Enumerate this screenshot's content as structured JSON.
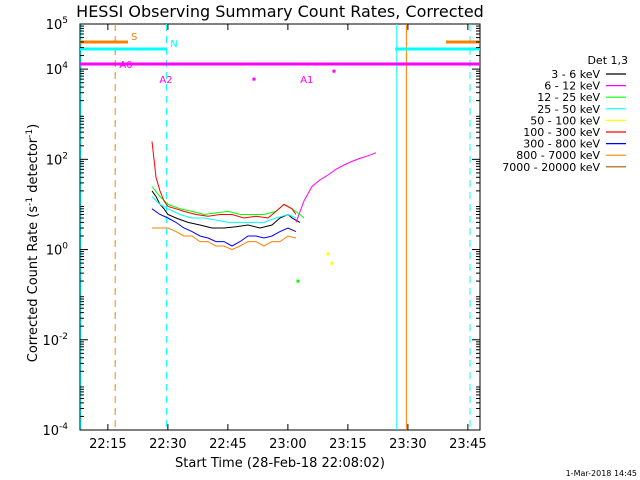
{
  "chart_data": {
    "type": "line",
    "title": "HESSI Observing Summary Count Rates, Corrected",
    "xlabel": "Start Time (28-Feb-18 22:08:02)",
    "ylabel": "Corrected Count Rate (s⁻¹ detector⁻¹)",
    "ylabel_main": "Corrected Count Rate (s",
    "ylabel_sup1": "-1",
    "ylabel_mid": " detector",
    "ylabel_sup2": "-1",
    "ylabel_end": ")",
    "x_unit": "minutes since 22:08:02",
    "xlim_time": [
      "22:08:02",
      "23:48:02"
    ],
    "xlim": [
      0,
      100
    ],
    "ylim": [
      0.0001,
      100000
    ],
    "y_scale": "log",
    "x_ticks": [
      {
        "t": 6.97,
        "label": "22:15"
      },
      {
        "t": 21.97,
        "label": "22:30"
      },
      {
        "t": 36.97,
        "label": "22:45"
      },
      {
        "t": 51.97,
        "label": "23:00"
      },
      {
        "t": 66.97,
        "label": "23:15"
      },
      {
        "t": 81.97,
        "label": "23:30"
      },
      {
        "t": 96.97,
        "label": "23:45"
      }
    ],
    "y_ticks": [
      {
        "exp": 5,
        "base": "10",
        "sup": "5"
      },
      {
        "exp": 4,
        "base": "10",
        "sup": "4"
      },
      {
        "exp": 2,
        "base": "10",
        "sup": "2"
      },
      {
        "exp": 0,
        "base": "10",
        "sup": "0"
      },
      {
        "exp": -2,
        "base": "10",
        "sup": "-2"
      },
      {
        "exp": -4,
        "base": "10",
        "sup": "-4"
      }
    ],
    "legend": {
      "title": "Det 1,3",
      "placement": "right",
      "entries": [
        {
          "label": "3 - 6 keV",
          "color": "#000000"
        },
        {
          "label": "6 - 12 keV",
          "color": "#ff00ff"
        },
        {
          "label": "12 - 25 keV",
          "color": "#00ff00"
        },
        {
          "label": "25 - 50 keV",
          "color": "#00ffff"
        },
        {
          "label": "50 - 100 keV",
          "color": "#ffff00"
        },
        {
          "label": "100 - 300 keV",
          "color": "#ff0000"
        },
        {
          "label": "300 - 800 keV",
          "color": "#0000ff"
        },
        {
          "label": "800 - 7000 keV",
          "color": "#ff8000"
        },
        {
          "label": "7000 - 20000 keV",
          "color": "#a06000"
        }
      ]
    },
    "state_bars": [
      {
        "label": "S",
        "color": "#ff8000",
        "y": 40000,
        "t_start": 0,
        "t_end": 12
      },
      {
        "label": "S",
        "color": "#ff8000",
        "y": 40000,
        "t_start": 91.5,
        "t_end": 100
      },
      {
        "label": "N",
        "color": "#00ffff",
        "y": 28000,
        "t_start": 0,
        "t_end": 21.8
      },
      {
        "label": "N",
        "color": "#00ffff",
        "y": 28000,
        "t_start": 78.8,
        "t_end": 100
      }
    ],
    "attenuator": {
      "color": "#ff00ff",
      "y": 13000,
      "t_start": 0,
      "t_end": 100,
      "labels": [
        {
          "text": "A0",
          "t": 11.5
        },
        {
          "text": "A2",
          "t": 21.5
        },
        {
          "text": "A1",
          "t": 56.7
        }
      ]
    },
    "vertical_lines": [
      {
        "t": 0.2,
        "color": "#00ffff",
        "style": "solid"
      },
      {
        "t": 8.8,
        "color": "#ff8000",
        "style": "dashed"
      },
      {
        "t": 21.6,
        "color": "#00ffff",
        "style": "dashed"
      },
      {
        "t": 79.2,
        "color": "#00ffff",
        "style": "solid"
      },
      {
        "t": 81.6,
        "color": "#ff8000",
        "style": "solid"
      },
      {
        "t": 97.5,
        "color": "#00ffff",
        "style": "dashed"
      }
    ],
    "series": [
      {
        "name": "3 - 6 keV",
        "color": "#000000",
        "points": [
          [
            18,
            20
          ],
          [
            19,
            15
          ],
          [
            20,
            10
          ],
          [
            21,
            8
          ],
          [
            22,
            6
          ],
          [
            24,
            5
          ],
          [
            27,
            4
          ],
          [
            30,
            3.5
          ],
          [
            33,
            3
          ],
          [
            36,
            3
          ],
          [
            39,
            3.2
          ],
          [
            42,
            3.5
          ],
          [
            45,
            3
          ],
          [
            48,
            3.5
          ],
          [
            50,
            5
          ],
          [
            52,
            6
          ],
          [
            53,
            5
          ],
          [
            55,
            4
          ]
        ]
      },
      {
        "name": "6 - 12 keV",
        "color": "#ff00ff",
        "points": [
          [
            54,
            4
          ],
          [
            56,
            12
          ],
          [
            58,
            25
          ],
          [
            60,
            35
          ],
          [
            62,
            45
          ],
          [
            64,
            60
          ],
          [
            66,
            75
          ],
          [
            68,
            90
          ],
          [
            70,
            105
          ],
          [
            72,
            120
          ],
          [
            74,
            140
          ]
        ]
      },
      {
        "name": "12 - 25 keV",
        "color": "#00ff00",
        "points": [
          [
            18,
            25
          ],
          [
            20,
            15
          ],
          [
            22,
            10
          ],
          [
            25,
            8
          ],
          [
            28,
            7
          ],
          [
            31,
            6
          ],
          [
            34,
            6.5
          ],
          [
            37,
            7
          ],
          [
            40,
            6
          ],
          [
            43,
            6
          ],
          [
            46,
            6
          ],
          [
            49,
            7
          ],
          [
            51,
            10
          ],
          [
            53,
            8
          ],
          [
            55,
            6
          ],
          [
            56,
            5
          ]
        ]
      },
      {
        "name": "25 - 50 keV",
        "color": "#00ffff",
        "points": [
          [
            18,
            15
          ],
          [
            20,
            10
          ],
          [
            22,
            8
          ],
          [
            25,
            6
          ],
          [
            28,
            5
          ],
          [
            31,
            5
          ],
          [
            34,
            4.5
          ],
          [
            37,
            4
          ],
          [
            40,
            4
          ],
          [
            43,
            4
          ],
          [
            46,
            4
          ],
          [
            49,
            5
          ],
          [
            52,
            6
          ],
          [
            54,
            5
          ]
        ]
      },
      {
        "name": "50 - 100 keV",
        "color": "#ffff00",
        "points": [
          [
            50,
            2.5
          ],
          [
            52,
            3
          ],
          [
            53,
            2.5
          ]
        ]
      },
      {
        "name": "100 - 300 keV",
        "color": "#ff0000",
        "points": [
          [
            18,
            250
          ],
          [
            18.5,
            100
          ],
          [
            19,
            40
          ],
          [
            20,
            20
          ],
          [
            21,
            12
          ],
          [
            22,
            9
          ],
          [
            24,
            8
          ],
          [
            26,
            7
          ],
          [
            29,
            6
          ],
          [
            32,
            5.5
          ],
          [
            35,
            6
          ],
          [
            38,
            6
          ],
          [
            41,
            5
          ],
          [
            44,
            5.5
          ],
          [
            47,
            5
          ],
          [
            49,
            7
          ],
          [
            51,
            10
          ],
          [
            53,
            8
          ],
          [
            54,
            6
          ]
        ]
      },
      {
        "name": "300 - 800 keV",
        "color": "#0000ff",
        "points": [
          [
            18,
            8
          ],
          [
            20,
            6
          ],
          [
            22,
            5
          ],
          [
            24,
            4
          ],
          [
            26,
            3
          ],
          [
            28,
            2.5
          ],
          [
            30,
            2
          ],
          [
            32,
            1.8
          ],
          [
            34,
            1.5
          ],
          [
            36,
            1.5
          ],
          [
            38,
            1.2
          ],
          [
            40,
            1.5
          ],
          [
            42,
            2
          ],
          [
            44,
            2
          ],
          [
            46,
            1.8
          ],
          [
            48,
            2
          ],
          [
            50,
            2.5
          ],
          [
            52,
            3
          ],
          [
            54,
            2.5
          ]
        ]
      },
      {
        "name": "800 - 7000 keV",
        "color": "#ff8000",
        "points": [
          [
            18,
            3
          ],
          [
            20,
            3
          ],
          [
            22,
            3
          ],
          [
            24,
            2.5
          ],
          [
            26,
            2
          ],
          [
            28,
            2
          ],
          [
            30,
            1.5
          ],
          [
            32,
            1.5
          ],
          [
            34,
            1.2
          ],
          [
            36,
            1.2
          ],
          [
            38,
            1
          ],
          [
            40,
            1.2
          ],
          [
            42,
            1.5
          ],
          [
            44,
            1.5
          ],
          [
            46,
            1.2
          ],
          [
            48,
            1.5
          ],
          [
            50,
            1.5
          ],
          [
            52,
            2
          ],
          [
            54,
            1.8
          ]
        ]
      },
      {
        "name": "7000 - 20000 keV",
        "color": "#a06000",
        "points": []
      }
    ],
    "extra_points": [
      {
        "color": "#00ff00",
        "t": 54.5,
        "y": 0.2
      },
      {
        "color": "#ffff00",
        "t": 62,
        "y": 0.8
      },
      {
        "color": "#ffff00",
        "t": 63,
        "y": 0.5
      },
      {
        "color": "#ff00ff",
        "t": 43.5,
        "y": 6000
      },
      {
        "color": "#ff00ff",
        "t": 63.5,
        "y": 9000
      }
    ],
    "grid": false
  },
  "footer": {
    "date_text": "1-Mar-2018 14:45"
  }
}
